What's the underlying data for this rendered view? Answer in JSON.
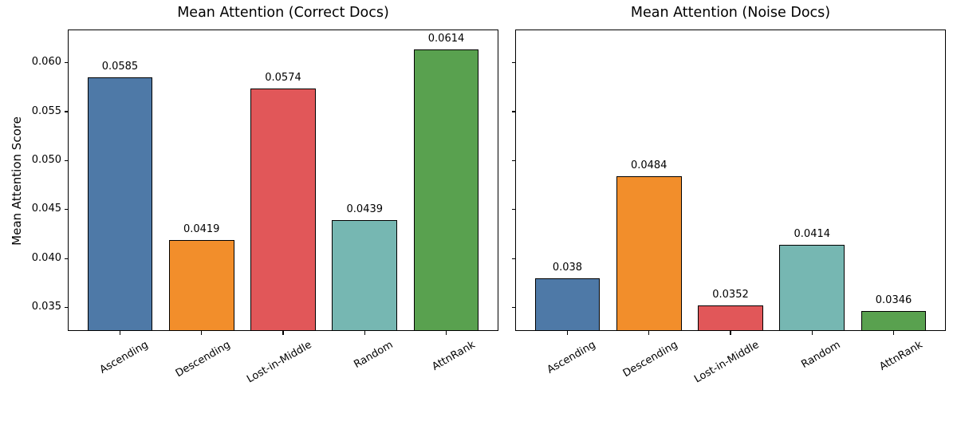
{
  "figure": {
    "ylabel": "Mean Attention Score",
    "background_color": "#ffffff",
    "text_color": "#000000",
    "axis_color": "#000000"
  },
  "chart_data": [
    {
      "type": "bar",
      "title": "Mean Attention (Correct Docs)",
      "categories": [
        "Ascending",
        "Descending",
        "Lost-in-Middle",
        "Random",
        "AttnRank"
      ],
      "values": [
        0.0585,
        0.0419,
        0.0574,
        0.0439,
        0.0614
      ],
      "bar_labels": [
        "0.0585",
        "0.0419",
        "0.0574",
        "0.0439",
        "0.0614"
      ],
      "bar_colors": [
        "#4e79a7",
        "#f28e2b",
        "#e15759",
        "#76b7b2",
        "#59a14f"
      ],
      "bar_edge_color": "#000000",
      "xlabel": "",
      "ylabel": "Mean Attention Score",
      "ylim": [
        0.0326,
        0.0634
      ],
      "yticks": [
        0.035,
        0.04,
        0.045,
        0.05,
        0.055,
        0.06
      ],
      "ytick_labels": [
        "0.035",
        "0.040",
        "0.045",
        "0.050",
        "0.055",
        "0.060"
      ],
      "show_ytick_labels": true,
      "xtick_rotation_deg": 30,
      "grid": false,
      "legend": null
    },
    {
      "type": "bar",
      "title": "Mean Attention (Noise Docs)",
      "categories": [
        "Ascending",
        "Descending",
        "Lost-in-Middle",
        "Random",
        "AttnRank"
      ],
      "values": [
        0.038,
        0.0484,
        0.0352,
        0.0414,
        0.0346
      ],
      "bar_labels": [
        "0.038",
        "0.0484",
        "0.0352",
        "0.0414",
        "0.0346"
      ],
      "bar_colors": [
        "#4e79a7",
        "#f28e2b",
        "#e15759",
        "#76b7b2",
        "#59a14f"
      ],
      "bar_edge_color": "#000000",
      "xlabel": "",
      "ylabel": "",
      "ylim": [
        0.0326,
        0.0634
      ],
      "yticks": [
        0.035,
        0.04,
        0.045,
        0.05,
        0.055,
        0.06
      ],
      "ytick_labels": [
        "0.035",
        "0.040",
        "0.045",
        "0.050",
        "0.055",
        "0.060"
      ],
      "show_ytick_labels": false,
      "xtick_rotation_deg": 30,
      "grid": false,
      "legend": null
    }
  ]
}
